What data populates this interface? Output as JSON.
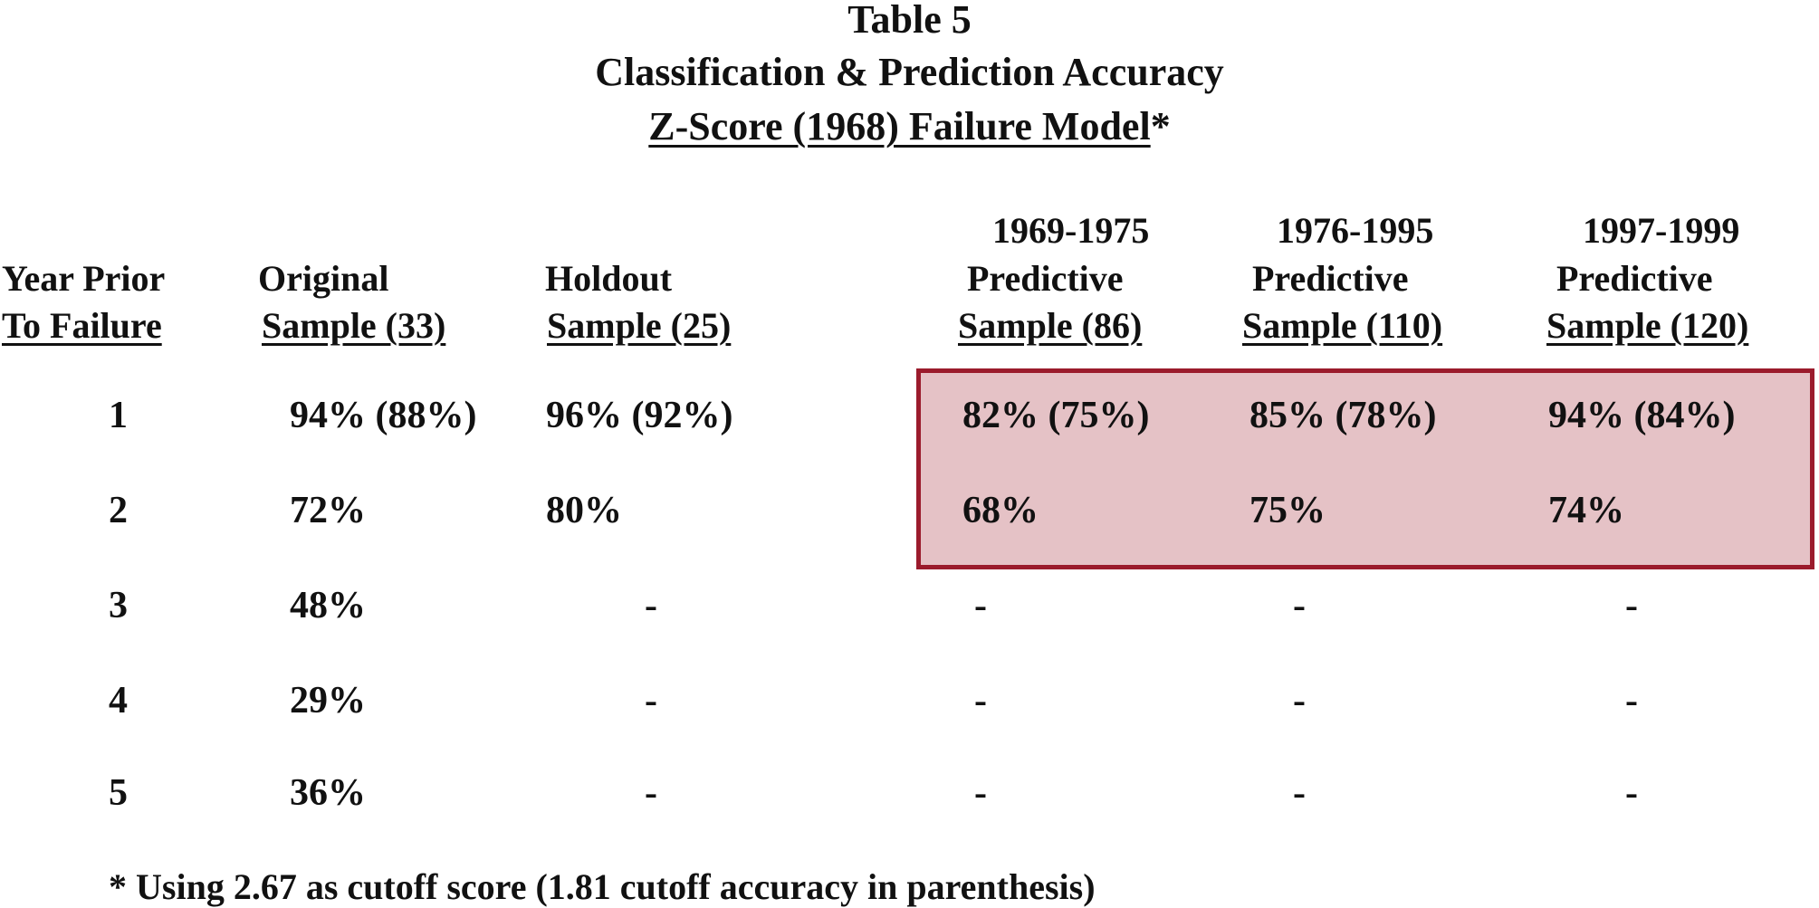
{
  "title": {
    "line1": "Table 5",
    "line2": "Classification & Prediction Accuracy",
    "line3_underlined": "Z-Score (1968) Failure Model",
    "line3_suffix": "*"
  },
  "columns": [
    {
      "line1": "",
      "line2": "Year Prior",
      "line3": "To Failure"
    },
    {
      "line1": "",
      "line2": "Original",
      "line3": "Sample (33)"
    },
    {
      "line1": "",
      "line2": "Holdout",
      "line3": "Sample (25)"
    },
    {
      "line1": "1969-1975",
      "line2": "Predictive",
      "line3": "Sample (86)"
    },
    {
      "line1": "1976-1995",
      "line2": "Predictive",
      "line3": "Sample (110)"
    },
    {
      "line1": "1997-1999",
      "line2": "Predictive",
      "line3": "Sample (120)"
    }
  ],
  "rows": [
    [
      "1",
      "94% (88%)",
      "96% (92%)",
      "82% (75%)",
      "85% (78%)",
      "94% (84%)"
    ],
    [
      "2",
      "72%",
      "80%",
      "68%",
      "75%",
      "74%"
    ],
    [
      "3",
      "48%",
      "-",
      "-",
      "-",
      "-"
    ],
    [
      "4",
      "29%",
      "-",
      "-",
      "-",
      "-"
    ],
    [
      "5",
      "36%",
      "-",
      "-",
      "-",
      "-"
    ]
  ],
  "highlight_color": "#e5c2c6",
  "highlight_border_color": "#9b1b2c",
  "footnote": "* Using 2.67 as cutoff score (1.81 cutoff accuracy in parenthesis)"
}
